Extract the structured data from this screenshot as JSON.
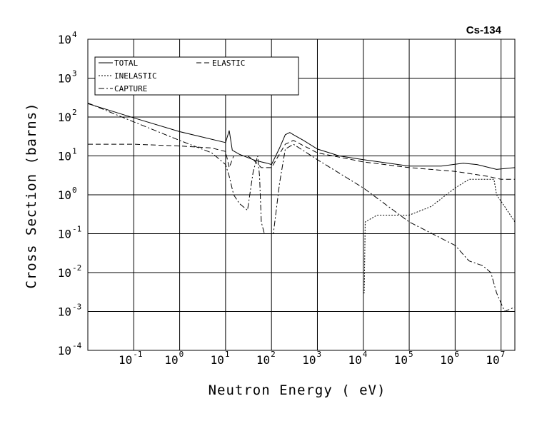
{
  "chart_data": {
    "type": "line",
    "title": "Cs-134",
    "xlabel": "Neutron Energy ( eV)",
    "ylabel": "Cross Section (barns)",
    "x_scale": "log",
    "y_scale": "log",
    "xlim": [
      0.01,
      20000000
    ],
    "ylim": [
      0.0001,
      10000
    ],
    "grid": true,
    "legend_position": "top-left",
    "x_ticks": [
      {
        "base": "10",
        "exp": "-1",
        "value": 0.1
      },
      {
        "base": "10",
        "exp": "0",
        "value": 1
      },
      {
        "base": "10",
        "exp": "1",
        "value": 10
      },
      {
        "base": "10",
        "exp": "2",
        "value": 100
      },
      {
        "base": "10",
        "exp": "3",
        "value": 1000
      },
      {
        "base": "10",
        "exp": "4",
        "value": 10000
      },
      {
        "base": "10",
        "exp": "5",
        "value": 100000
      },
      {
        "base": "10",
        "exp": "6",
        "value": 1000000
      },
      {
        "base": "10",
        "exp": "7",
        "value": 10000000
      }
    ],
    "y_ticks": [
      {
        "base": "10",
        "exp": "4",
        "value": 10000
      },
      {
        "base": "10",
        "exp": "3",
        "value": 1000
      },
      {
        "base": "10",
        "exp": "2",
        "value": 100
      },
      {
        "base": "10",
        "exp": "1",
        "value": 10
      },
      {
        "base": "10",
        "exp": "0",
        "value": 1
      },
      {
        "base": "10",
        "exp": "-1",
        "value": 0.1
      },
      {
        "base": "10",
        "exp": "-2",
        "value": 0.01
      },
      {
        "base": "10",
        "exp": "-3",
        "value": 0.001
      },
      {
        "base": "10",
        "exp": "-4",
        "value": 0.0001
      }
    ],
    "series": [
      {
        "name": "TOTAL",
        "style": "solid",
        "x": [
          0.01,
          0.1,
          1,
          10,
          12,
          14,
          20,
          40,
          60,
          80,
          100,
          150,
          200,
          250,
          300,
          500,
          1000,
          3000,
          10000,
          100000,
          500000,
          1500000,
          3000000,
          8000000,
          20000000
        ],
        "y": [
          220,
          95,
          42,
          22,
          45,
          14,
          11,
          8,
          7,
          6.5,
          6,
          16,
          35,
          40,
          35,
          25,
          15,
          10,
          8,
          5.5,
          5.5,
          6.5,
          6,
          4.5,
          5
        ]
      },
      {
        "name": "ELASTIC",
        "style": "dashed",
        "x": [
          0.01,
          0.1,
          1,
          5,
          10,
          12,
          15,
          30,
          40,
          60,
          80,
          100,
          200,
          300,
          1000,
          10000,
          100000,
          1000000,
          5000000,
          10000000,
          20000000
        ],
        "y": [
          20,
          20,
          18,
          16,
          13,
          5,
          10,
          10,
          8,
          5,
          5,
          5,
          20,
          25,
          12,
          7,
          5,
          4,
          3,
          2.5,
          2.5
        ]
      },
      {
        "name": "INELASTIC",
        "style": "dotted",
        "x": [
          10000,
          10500,
          11000,
          20000,
          30000,
          100000,
          300000,
          1000000,
          2000000,
          7000000,
          8000000,
          12000000,
          20000000
        ],
        "y": [
          0.003,
          0.003,
          0.2,
          0.3,
          0.3,
          0.3,
          0.5,
          1.5,
          2.5,
          2.5,
          1.0,
          0.5,
          0.2
        ]
      },
      {
        "name": "CAPTURE",
        "style": "dash-dot",
        "x": [
          0.01,
          0.1,
          1,
          5,
          10,
          12,
          15,
          20,
          30,
          40,
          50,
          55,
          60,
          70,
          80,
          90,
          100,
          110,
          150,
          200,
          300,
          1000,
          10000,
          100000,
          1000000,
          2000000,
          4000000,
          6000000,
          8000000,
          12000000,
          20000000
        ],
        "y": [
          230,
          75,
          25,
          12,
          6,
          3,
          1,
          0.6,
          0.4,
          4,
          10,
          3,
          0.2,
          0.1,
          0.1,
          0.1,
          0.1,
          0.1,
          2,
          15,
          20,
          8,
          1.5,
          0.2,
          0.05,
          0.02,
          0.015,
          0.01,
          0.003,
          0.001,
          0.0013
        ]
      }
    ]
  }
}
